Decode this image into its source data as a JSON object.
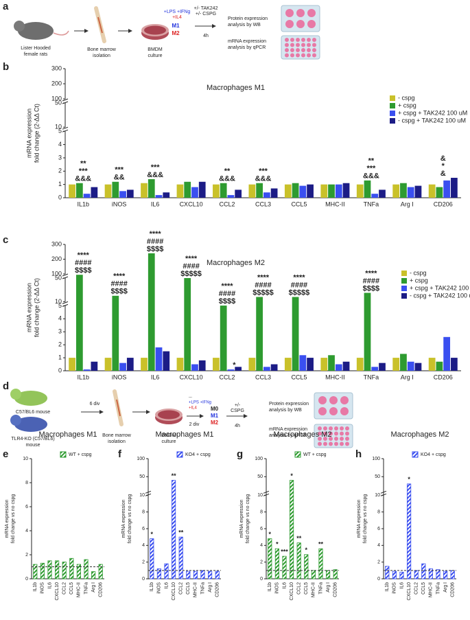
{
  "panel_labels": [
    "a",
    "b",
    "c",
    "d",
    "e",
    "f",
    "g",
    "h"
  ],
  "diagram_a": {
    "rat": [
      "Lister Hooded",
      "female rats"
    ],
    "bone": [
      "Bone marrow",
      "isolation"
    ],
    "dish": [
      "BMDM",
      "culture"
    ],
    "m1_stim": "+LPS +IFNg",
    "m2_stim": "+IL4",
    "m1": "M1",
    "m2": "M2",
    "tak": "+/- TAK242",
    "cspg": "+/- CSPG",
    "time": "4h",
    "wb": [
      "Protein expression",
      "analysis by WB"
    ],
    "qpcr": [
      "mRNA expression",
      "analysis by qPCR"
    ]
  },
  "diagram_d": {
    "wt": "C57/BL6 mouse",
    "ko": [
      "TLR4-KO (C57/BL6)",
      "mouse"
    ],
    "div1": "6 div",
    "bone": [
      "Bone marrow",
      "isolation"
    ],
    "dish": [
      "BMDM",
      "culture"
    ],
    "m0_stim": "---",
    "m1_stim": "+LPS +IFNg",
    "m2_stim": "+IL4",
    "div2": "2 div",
    "m0": "M0",
    "m1": "M1",
    "m2": "M2",
    "cspg": [
      "+/-",
      "CSPG"
    ],
    "time": "4h",
    "wb": [
      "Protein expression",
      "analysis by WB"
    ],
    "qpcr": [
      "mRNA expression",
      "analysis by qPCR"
    ]
  },
  "chart_data": [
    {
      "type": "bar",
      "title": "Macrophages M1",
      "ylabel": [
        "mRNA expression",
        "fold change (2-ΔΔ Ct)"
      ],
      "categories": [
        "IL1b",
        "iNOS",
        "IL6",
        "CXCL10",
        "CCL2",
        "CCL3",
        "CCL5",
        "MHC-II",
        "TNFa",
        "Arg I",
        "CD206"
      ],
      "series": [
        {
          "name": "- cspg",
          "color": "#c9c12a",
          "values": [
            1.0,
            1.0,
            1.1,
            1.0,
            1.0,
            1.0,
            1.0,
            1.0,
            1.0,
            1.0,
            1.0
          ]
        },
        {
          "name": "+ cspg",
          "color": "#2e9b30",
          "values": [
            1.1,
            1.2,
            1.4,
            1.2,
            1.1,
            1.1,
            1.1,
            1.0,
            1.3,
            1.1,
            0.8
          ]
        },
        {
          "name": "+ cspg + TAK242 100 uM",
          "color": "#3a4ff0",
          "values": [
            0.3,
            0.5,
            0.2,
            0.8,
            0.2,
            0.4,
            0.9,
            1.0,
            0.3,
            0.8,
            1.3
          ]
        },
        {
          "name": "- cspg + TAK242 100 uM",
          "color": "#1c1c86",
          "values": [
            0.8,
            0.6,
            0.4,
            1.2,
            0.6,
            0.7,
            1.0,
            1.1,
            0.6,
            0.9,
            1.5
          ]
        }
      ],
      "ylim": [
        0,
        300
      ],
      "y_segments": [
        [
          0,
          5
        ],
        [
          10,
          50
        ],
        [
          100,
          300
        ]
      ],
      "yticks": [
        0,
        1,
        2,
        3,
        4,
        5,
        10,
        50,
        100,
        200,
        300
      ],
      "grid": false,
      "legend": "upper right",
      "annotations": [
        {
          "category": "IL1b",
          "lines": [
            "**",
            "***",
            "&&&"
          ]
        },
        {
          "category": "iNOS",
          "lines": [
            "***",
            "&&"
          ]
        },
        {
          "category": "IL6",
          "lines": [
            "***",
            "&&&"
          ]
        },
        {
          "category": "CCL2",
          "lines": [
            "**",
            "&&&"
          ]
        },
        {
          "category": "CCL3",
          "lines": [
            "***",
            "&&&"
          ]
        },
        {
          "category": "TNFa",
          "lines": [
            "**",
            "***",
            "&&&"
          ]
        },
        {
          "category": "CD206",
          "lines": [
            "&",
            "*",
            "&"
          ]
        }
      ]
    },
    {
      "type": "bar",
      "title": "Macrophages M2",
      "ylabel": [
        "mRNA expression",
        "fold change (2-ΔΔ Ct)"
      ],
      "categories": [
        "IL1b",
        "iNOS",
        "IL6",
        "CXCL10",
        "CCL2",
        "CCL3",
        "CCL5",
        "MHC-II",
        "TNFa",
        "Arg I",
        "CD206"
      ],
      "series": [
        {
          "name": "- cspg",
          "color": "#c9c12a",
          "values": [
            1.0,
            1.0,
            1.0,
            1.0,
            1.0,
            1.0,
            1.0,
            1.0,
            1.0,
            1.0,
            1.0
          ]
        },
        {
          "name": "+ cspg",
          "color": "#2e9b30",
          "values": [
            90,
            20,
            240,
            50,
            5.3,
            18,
            18,
            1.2,
            25,
            1.3,
            0.7
          ]
        },
        {
          "name": "+ cspg + TAK242 100 uM",
          "color": "#3a4ff0",
          "values": [
            0.1,
            0.6,
            1.8,
            0.5,
            0.1,
            0.3,
            1.2,
            0.5,
            0.3,
            0.7,
            2.6
          ]
        },
        {
          "name": "- cspg + TAK242 100 uM",
          "color": "#1c1c86",
          "values": [
            0.7,
            1.0,
            1.5,
            0.8,
            0.3,
            0.5,
            1.0,
            0.7,
            0.6,
            0.6,
            1.0
          ]
        }
      ],
      "ylim": [
        0,
        300
      ],
      "y_segments": [
        [
          0,
          5
        ],
        [
          10,
          50
        ],
        [
          100,
          300
        ]
      ],
      "yticks": [
        0,
        1,
        2,
        3,
        4,
        5,
        10,
        50,
        100,
        200,
        300
      ],
      "grid": false,
      "legend": "upper right",
      "annotations": [
        {
          "category": "IL1b",
          "lines": [
            "****",
            "####",
            "$$$$"
          ]
        },
        {
          "category": "iNOS",
          "lines": [
            "****",
            "####",
            "$$$$"
          ]
        },
        {
          "category": "IL6",
          "lines": [
            "****",
            "####",
            "$$$$"
          ]
        },
        {
          "category": "CXCL10",
          "lines": [
            "****",
            "####",
            "$$$$$"
          ]
        },
        {
          "category": "CCL2",
          "lines": [
            "****",
            "####",
            "$$$$"
          ]
        },
        {
          "category": "CCL2",
          "series": "+ cspg + TAK242 100 uM",
          "lines": [
            "*"
          ]
        },
        {
          "category": "CCL3",
          "lines": [
            "****",
            "####",
            "$$$$$"
          ]
        },
        {
          "category": "CCL5",
          "lines": [
            "****",
            "####",
            "$$$$$"
          ]
        },
        {
          "category": "TNFa",
          "lines": [
            "****",
            "####",
            "$$$$"
          ]
        }
      ]
    },
    {
      "type": "bar",
      "title": "Macrophages M1",
      "ylabel": [
        "mRNA expression",
        "fold change vs no cspg"
      ],
      "categories": [
        "IL1b",
        "iNOS",
        "IL6",
        "CXCL10",
        "CCL2",
        "CCL5",
        "MHC-II",
        "TNFa",
        "Arg I",
        "CD206"
      ],
      "series": [
        {
          "name": "WT + cspg",
          "color": "#2e9b30",
          "hatch": true,
          "values": [
            1.2,
            1.3,
            1.5,
            1.5,
            1.4,
            1.7,
            1.2,
            1.6,
            0.6,
            1.2
          ]
        }
      ],
      "ylim": [
        0,
        10
      ],
      "y_segments": [
        [
          0,
          10
        ]
      ],
      "yticks": [
        0,
        2,
        4,
        6,
        8,
        10
      ],
      "ref_line": 1,
      "grid": false,
      "legend": "upper right",
      "annotations": []
    },
    {
      "type": "bar",
      "title": "Macrophages M1",
      "ylabel": [
        "mRNA expression",
        "fold change vs no cspg"
      ],
      "categories": [
        "IL1b",
        "iNOS",
        "IL6",
        "CXCL10",
        "CCL2",
        "CCL5",
        "MHC-II",
        "TNFa",
        "Arg I",
        "CD206"
      ],
      "series": [
        {
          "name": "KO4 + cspg",
          "color": "#3a4ff0",
          "hatch": true,
          "values": [
            4.8,
            1.2,
            1.8,
            40,
            5.0,
            0.9,
            0.9,
            1.0,
            0.9,
            0.9
          ]
        }
      ],
      "ylim": [
        0,
        100
      ],
      "y_segments": [
        [
          0,
          10
        ],
        [
          10,
          100
        ]
      ],
      "yticks": [
        0,
        2,
        4,
        6,
        8,
        10,
        50,
        100
      ],
      "ref_line": 1,
      "grid": false,
      "legend": "upper right",
      "annotations": [
        {
          "category": "IL1b",
          "lines": [
            "*"
          ]
        },
        {
          "category": "CXCL10",
          "lines": [
            "**"
          ]
        },
        {
          "category": "CCL2",
          "lines": [
            "**"
          ]
        }
      ]
    },
    {
      "type": "bar",
      "title": "Macrophages M2",
      "ylabel": [
        "mRNA expression",
        "fold change vs no cspg"
      ],
      "categories": [
        "IL1b",
        "iNOS",
        "IL6",
        "CXCL10",
        "CCL2",
        "CCL5",
        "MHC-II",
        "TNFa",
        "Arg I",
        "CD206"
      ],
      "series": [
        {
          "name": "WT + cspg",
          "color": "#2e9b30",
          "hatch": true,
          "values": [
            4.8,
            3.6,
            2.7,
            40,
            4.3,
            2.9,
            1.0,
            3.6,
            1.0,
            1.1
          ]
        }
      ],
      "ylim": [
        0,
        100
      ],
      "y_segments": [
        [
          0,
          10
        ],
        [
          10,
          100
        ]
      ],
      "yticks": [
        0,
        2,
        4,
        6,
        8,
        10,
        50,
        100
      ],
      "ref_line": 1,
      "grid": false,
      "legend": "upper right",
      "annotations": [
        {
          "category": "IL1b",
          "lines": [
            "*"
          ]
        },
        {
          "category": "iNOS",
          "lines": [
            "*"
          ]
        },
        {
          "category": "IL6",
          "lines": [
            "***"
          ]
        },
        {
          "category": "CXCL10",
          "lines": [
            "*"
          ]
        },
        {
          "category": "CCL2",
          "lines": [
            "**"
          ]
        },
        {
          "category": "CCL5",
          "lines": [
            "*"
          ]
        },
        {
          "category": "TNFa",
          "lines": [
            "**"
          ]
        }
      ]
    },
    {
      "type": "bar",
      "title": "Macrophages M2",
      "ylabel": [
        "mRNA expression",
        "fold change vs no cspg"
      ],
      "categories": [
        "IL1b",
        "iNOS",
        "IL6",
        "CXCL10",
        "CCL2",
        "CCL5",
        "MHC-II",
        "TNFa",
        "Arg I",
        "CD206"
      ],
      "series": [
        {
          "name": "KO4 + cspg",
          "color": "#3a4ff0",
          "hatch": true,
          "values": [
            1.5,
            0.9,
            0.8,
            30,
            1.0,
            1.8,
            1.2,
            1.1,
            0.9,
            1.0
          ]
        }
      ],
      "ylim": [
        0,
        100
      ],
      "y_segments": [
        [
          0,
          10
        ],
        [
          10,
          100
        ]
      ],
      "yticks": [
        0,
        2,
        4,
        6,
        8,
        10,
        50,
        100
      ],
      "ref_line": 1,
      "grid": false,
      "legend": "upper right",
      "annotations": [
        {
          "category": "CXCL10",
          "lines": [
            "*"
          ]
        }
      ]
    }
  ]
}
